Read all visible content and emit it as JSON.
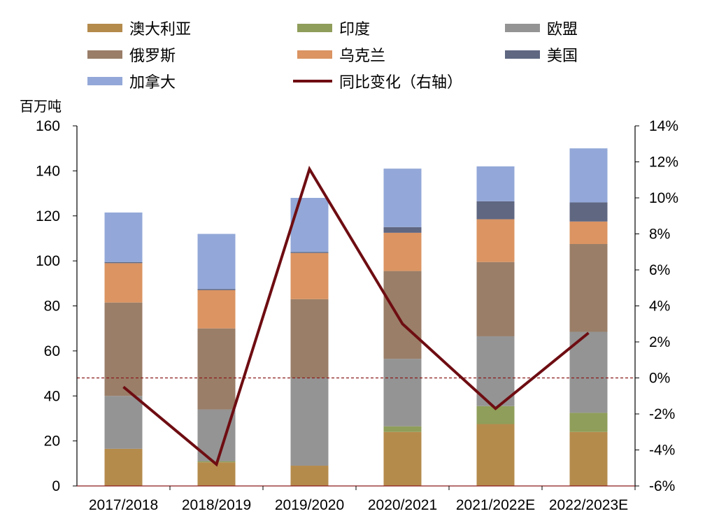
{
  "chart_data": {
    "type": "bar",
    "stacked": true,
    "unit_label": "百万吨",
    "categories": [
      "2017/2018",
      "2018/2019",
      "2019/2020",
      "2020/2021",
      "2021/2022E",
      "2022/2023E"
    ],
    "series": [
      {
        "name": "澳大利亚",
        "color": "#b58b4c",
        "values": [
          16.5,
          10.5,
          9,
          24,
          27.5,
          24
        ]
      },
      {
        "name": "印度",
        "color": "#8f9e5a",
        "values": [
          0,
          0.5,
          0,
          2.5,
          8,
          8.5
        ]
      },
      {
        "name": "欧盟",
        "color": "#949494",
        "values": [
          23.5,
          23,
          39,
          30,
          31,
          36
        ]
      },
      {
        "name": "俄罗斯",
        "color": "#9a7e68",
        "values": [
          41.5,
          36,
          35,
          39,
          33,
          39
        ]
      },
      {
        "name": "乌克兰",
        "color": "#db9462",
        "values": [
          17.5,
          17,
          20.5,
          17,
          19,
          10
        ]
      },
      {
        "name": "美国",
        "color": "#5f6781",
        "values": [
          0.5,
          0.5,
          0.5,
          2.5,
          8,
          8.5
        ]
      },
      {
        "name": "加拿大",
        "color": "#93a8d8",
        "values": [
          22,
          24.5,
          24,
          26,
          15.5,
          24
        ]
      }
    ],
    "line": {
      "name": "同比变化（右轴）",
      "color": "#6e0d12",
      "values": [
        -0.5,
        -4.8,
        11.6,
        3.0,
        -1.7,
        2.5
      ]
    },
    "ylim": [
      0,
      160
    ],
    "yticks": [
      "0",
      "20",
      "40",
      "60",
      "80",
      "100",
      "120",
      "140",
      "160"
    ],
    "y2lim": [
      -6,
      14
    ],
    "y2ticks": [
      "-6%",
      "-4%",
      "-2%",
      "0%",
      "2%",
      "4%",
      "6%",
      "8%",
      "10%",
      "12%",
      "14%"
    ],
    "legend_placement": "top",
    "grid": false
  }
}
